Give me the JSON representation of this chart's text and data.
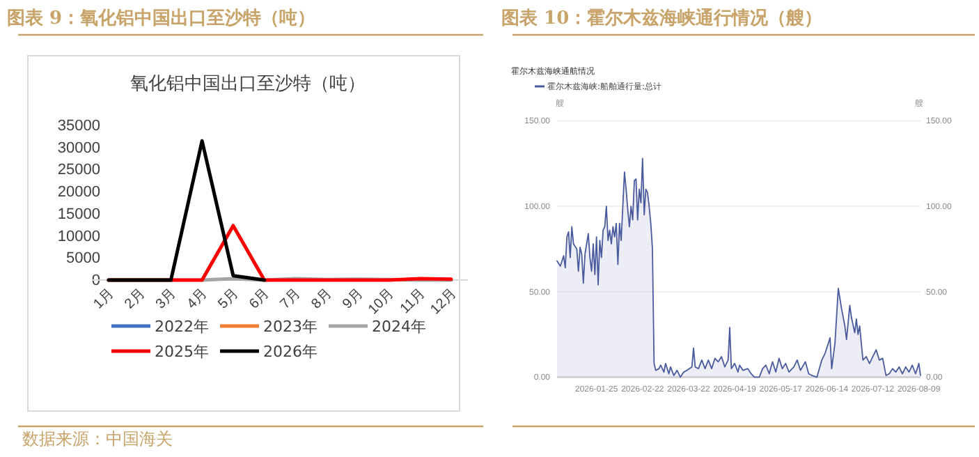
{
  "chart_data": [
    {
      "type": "line",
      "title": "图表 9：氧化铝中国出口至沙特（吨）",
      "subtitle": "氧化铝中国出口至沙特（吨）",
      "annotations": [
        "数据来源：中国海关"
      ],
      "categories": [
        "1月",
        "2月",
        "3月",
        "4月",
        "5月",
        "6月",
        "7月",
        "8月",
        "9月",
        "10月",
        "11月",
        "12月"
      ],
      "series": [
        {
          "name": "2022年",
          "color": "#4472c4",
          "values": [
            null,
            null,
            null,
            null,
            null,
            null,
            null,
            null,
            null,
            null,
            null,
            null
          ]
        },
        {
          "name": "2023年",
          "color": "#ed7d31",
          "values": [
            null,
            null,
            null,
            null,
            null,
            null,
            null,
            null,
            null,
            null,
            null,
            null
          ]
        },
        {
          "name": "2024年",
          "color": "#a5a5a5",
          "values": [
            0,
            0,
            0,
            0,
            300,
            0,
            300,
            100,
            200,
            100,
            0,
            0
          ]
        },
        {
          "name": "2025年",
          "color": "#ff0000",
          "values": [
            0,
            0,
            0,
            0,
            12300,
            0,
            0,
            0,
            0,
            0,
            300,
            200
          ]
        },
        {
          "name": "2026年",
          "color": "#000000",
          "values": [
            0,
            0,
            0,
            31500,
            1000,
            0,
            null,
            null,
            null,
            null,
            null,
            null
          ]
        }
      ],
      "ylim": [
        0,
        35000
      ],
      "yticks": [
        0,
        5000,
        10000,
        15000,
        20000,
        25000,
        30000,
        35000
      ],
      "legend": "bottom"
    },
    {
      "type": "area",
      "title": "图表 10：霍尔木兹海峡通行情况（艘）",
      "subtitle": "霍尔木兹海峡通航情况",
      "annotations": [
        "艘",
        "艘"
      ],
      "x": [
        "2026-01-01",
        "2026-01-03",
        "2026-01-05",
        "2026-01-06",
        "2026-01-07",
        "2026-01-08",
        "2026-01-09",
        "2026-01-10",
        "2026-01-11",
        "2026-01-13",
        "2026-01-14",
        "2026-01-15",
        "2026-01-16",
        "2026-01-17",
        "2026-01-18",
        "2026-01-20",
        "2026-01-21",
        "2026-01-22",
        "2026-01-23",
        "2026-01-24",
        "2026-01-25",
        "2026-01-26",
        "2026-01-27",
        "2026-01-28",
        "2026-01-29",
        "2026-01-30",
        "2026-01-31",
        "2026-02-01",
        "2026-02-02",
        "2026-02-03",
        "2026-02-04",
        "2026-02-05",
        "2026-02-06",
        "2026-02-07",
        "2026-02-08",
        "2026-02-09",
        "2026-02-10",
        "2026-02-11",
        "2026-02-12",
        "2026-02-13",
        "2026-02-14",
        "2026-02-15",
        "2026-02-16",
        "2026-02-17",
        "2026-02-18",
        "2026-02-19",
        "2026-02-20",
        "2026-02-21",
        "2026-02-22",
        "2026-02-23",
        "2026-02-24",
        "2026-02-25",
        "2026-02-26",
        "2026-02-27",
        "2026-02-28",
        "2026-03-01",
        "2026-03-02",
        "2026-03-04",
        "2026-03-05",
        "2026-03-07",
        "2026-03-08",
        "2026-03-10",
        "2026-03-11",
        "2026-03-13",
        "2026-03-15",
        "2026-03-17",
        "2026-03-19",
        "2026-03-21",
        "2026-03-24",
        "2026-03-25",
        "2026-03-26",
        "2026-03-28",
        "2026-03-30",
        "2026-04-01",
        "2026-04-03",
        "2026-04-05",
        "2026-04-07",
        "2026-04-09",
        "2026-04-11",
        "2026-04-13",
        "2026-04-15",
        "2026-04-16",
        "2026-04-17",
        "2026-04-19",
        "2026-04-21",
        "2026-04-22",
        "2026-04-24",
        "2026-04-27",
        "2026-04-29",
        "2026-05-01",
        "2026-05-04",
        "2026-05-06",
        "2026-05-08",
        "2026-05-10",
        "2026-05-12",
        "2026-05-14",
        "2026-05-16",
        "2026-05-18",
        "2026-05-20",
        "2026-05-22",
        "2026-05-25",
        "2026-05-27",
        "2026-05-29",
        "2026-06-01",
        "2026-06-03",
        "2026-06-05",
        "2026-06-08",
        "2026-06-11",
        "2026-06-13",
        "2026-06-16",
        "2026-06-17",
        "2026-06-19",
        "2026-06-21",
        "2026-06-23",
        "2026-06-25",
        "2026-06-26",
        "2026-06-28",
        "2026-06-29",
        "2026-07-01",
        "2026-07-02",
        "2026-07-03",
        "2026-07-04",
        "2026-07-06",
        "2026-07-08",
        "2026-07-10",
        "2026-07-12",
        "2026-07-14",
        "2026-07-16",
        "2026-07-18",
        "2026-07-20",
        "2026-07-22",
        "2026-07-24",
        "2026-07-26",
        "2026-07-28",
        "2026-07-30",
        "2026-08-01",
        "2026-08-03",
        "2026-08-05",
        "2026-08-07",
        "2026-08-09",
        "2026-08-10"
      ],
      "series": [
        {
          "name": "霍尔木兹海峡:船舶通行量:总计",
          "color": "#4a5a9e",
          "values": [
            68,
            65,
            71,
            64,
            82,
            85,
            70,
            88,
            78,
            75,
            62,
            76,
            72,
            55,
            72,
            84,
            70,
            62,
            78,
            60,
            82,
            54,
            80,
            70,
            86,
            88,
            100,
            80,
            86,
            78,
            88,
            82,
            90,
            66,
            90,
            80,
            100,
            120,
            110,
            98,
            88,
            100,
            92,
            115,
            116,
            92,
            110,
            102,
            128,
            95,
            110,
            108,
            100,
            90,
            75,
            8,
            4,
            5,
            7,
            3,
            8,
            2,
            6,
            1,
            4,
            0,
            3,
            4,
            6,
            17,
            6,
            5,
            10,
            5,
            10,
            5,
            11,
            9,
            12,
            6,
            10,
            29,
            5,
            8,
            3,
            7,
            4,
            5,
            2,
            0,
            0,
            5,
            7,
            2,
            9,
            3,
            11,
            5,
            8,
            3,
            6,
            10,
            4,
            9,
            2,
            1,
            0,
            10,
            14,
            23,
            5,
            20,
            52,
            40,
            30,
            22,
            42,
            35,
            26,
            34,
            25,
            30,
            10,
            12,
            8,
            12,
            16,
            10,
            11,
            1,
            2,
            5,
            3,
            6,
            2,
            6,
            3,
            7,
            2,
            8,
            1
          ]
        }
      ],
      "xlim": [
        "2026-01-01",
        "2026-08-10"
      ],
      "xticks": [
        "2026-01-25",
        "2026-02-22",
        "2026-03-22",
        "2026-04-19",
        "2026-05-17",
        "2026-06-14",
        "2026-07-12",
        "2026-08-09"
      ],
      "ylim": [
        0,
        150
      ],
      "yticks": [
        {
          "value": 0,
          "label": "0.00"
        },
        {
          "value": 50,
          "label": "50.00"
        },
        {
          "value": 100,
          "label": "100.00"
        },
        {
          "value": 150,
          "label": "150.00"
        }
      ],
      "y2lim": [
        0,
        150
      ],
      "y2ticks": [
        {
          "value": 0,
          "label": "0.00"
        },
        {
          "value": 50,
          "label": "50.00"
        },
        {
          "value": 100,
          "label": "100.00"
        },
        {
          "value": 150,
          "label": "150.00"
        }
      ],
      "grid": "y",
      "legend": "top left"
    }
  ]
}
